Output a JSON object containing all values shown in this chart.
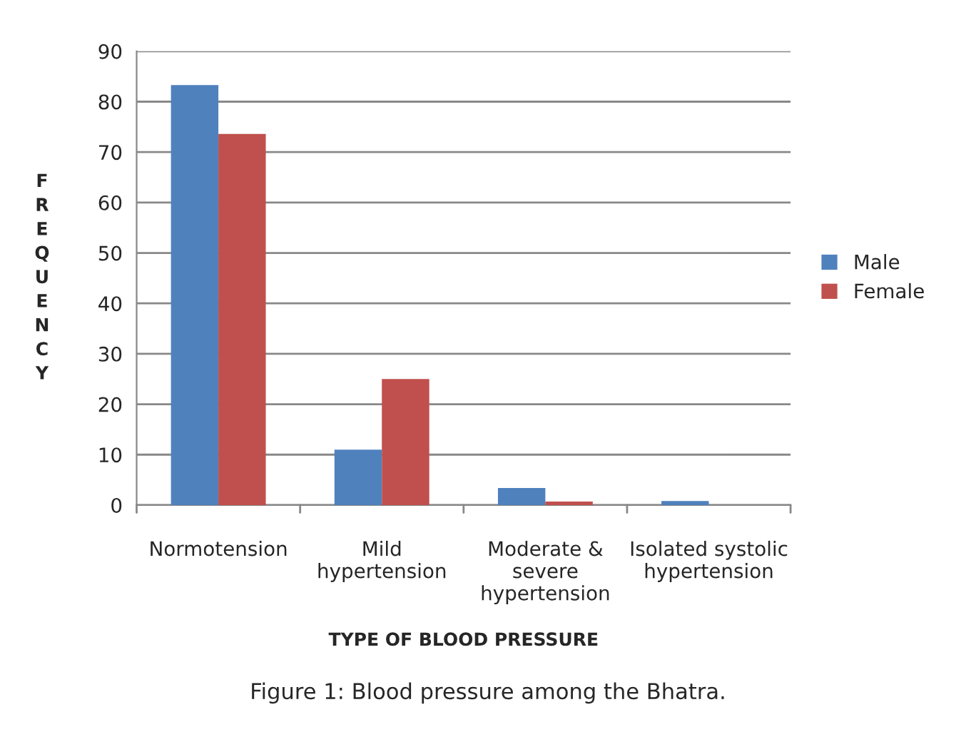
{
  "chart_data": {
    "type": "bar",
    "title": "Figure 1: Blood pressure among the Bhatra.",
    "xlabel": "TYPE OF BLOOD PRESSURE",
    "ylabel": "FREQUENCY",
    "categories": [
      "Normotension",
      "Mild\nhypertension",
      "Moderate &\nsevere\nhypertension",
      "Isolated systolic\nhypertension"
    ],
    "series": [
      {
        "name": "Male",
        "color": "#4f81bd",
        "values": [
          83.3,
          11,
          3.4,
          0.8
        ]
      },
      {
        "name": "Female",
        "color": "#c0504d",
        "values": [
          73.6,
          25,
          0.7,
          0
        ]
      }
    ],
    "ylim": [
      0,
      90
    ],
    "yticks": [
      0,
      10,
      20,
      30,
      40,
      50,
      60,
      70,
      80,
      90
    ],
    "grid": "y",
    "legend": "right"
  }
}
